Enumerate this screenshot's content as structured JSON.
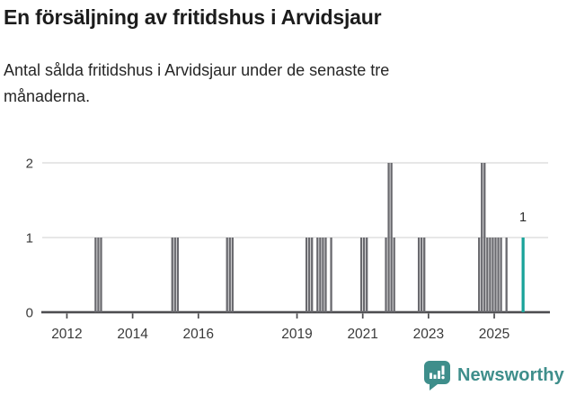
{
  "header": {
    "title": "En försäljning av fritidshus i Arvidsjaur",
    "subtitle_lines": {
      "0": "Antal sålda fritidshus i Arvidsjaur under de senaste tre",
      "1": "månaderna."
    }
  },
  "footer": {
    "brand": "Newsworthy"
  },
  "colors": {
    "bar": "#69696e",
    "highlight": "#19a39a",
    "grid": "#e3e3e3",
    "axis": "#4d4d50",
    "tick_text": "#3a3a3a",
    "annotation_text": "#2a2a2a",
    "brand": "#3e8e8b"
  },
  "chart_data": {
    "type": "bar",
    "title": "En försäljning av fritidshus i Arvidsjaur",
    "subtitle": "Antal sålda fritidshus i Arvidsjaur under de senaste tre månaderna.",
    "xlabel": "",
    "ylabel": "",
    "grid": "horizontal",
    "legend": "none",
    "ylim": [
      0,
      2
    ],
    "y_ticks": [
      0,
      1,
      2
    ],
    "x_tick_labels": [
      "2012",
      "2014",
      "2016",
      "2019",
      "2021",
      "2023",
      "2025"
    ],
    "x_range": [
      "2011-04",
      "2026-08"
    ],
    "points": [
      {
        "month": "2012-11",
        "value": 1
      },
      {
        "month": "2012-12",
        "value": 1
      },
      {
        "month": "2013-01",
        "value": 1
      },
      {
        "month": "2015-03",
        "value": 1
      },
      {
        "month": "2015-04",
        "value": 1
      },
      {
        "month": "2015-05",
        "value": 1
      },
      {
        "month": "2016-11",
        "value": 1
      },
      {
        "month": "2016-12",
        "value": 1
      },
      {
        "month": "2017-01",
        "value": 1
      },
      {
        "month": "2019-04",
        "value": 1
      },
      {
        "month": "2019-05",
        "value": 1
      },
      {
        "month": "2019-06",
        "value": 1
      },
      {
        "month": "2019-08",
        "value": 1
      },
      {
        "month": "2019-09",
        "value": 1
      },
      {
        "month": "2019-10",
        "value": 1
      },
      {
        "month": "2019-11",
        "value": 1
      },
      {
        "month": "2020-01",
        "value": 1
      },
      {
        "month": "2020-12",
        "value": 1
      },
      {
        "month": "2021-01",
        "value": 1
      },
      {
        "month": "2021-02",
        "value": 1
      },
      {
        "month": "2021-09",
        "value": 1
      },
      {
        "month": "2021-10",
        "value": 2
      },
      {
        "month": "2021-11",
        "value": 2
      },
      {
        "month": "2021-12",
        "value": 1
      },
      {
        "month": "2022-09",
        "value": 1
      },
      {
        "month": "2022-10",
        "value": 1
      },
      {
        "month": "2022-11",
        "value": 1
      },
      {
        "month": "2024-07",
        "value": 1
      },
      {
        "month": "2024-08",
        "value": 2
      },
      {
        "month": "2024-09",
        "value": 2
      },
      {
        "month": "2024-10",
        "value": 1
      },
      {
        "month": "2024-11",
        "value": 1
      },
      {
        "month": "2024-12",
        "value": 1
      },
      {
        "month": "2025-01",
        "value": 1
      },
      {
        "month": "2025-02",
        "value": 1
      },
      {
        "month": "2025-03",
        "value": 1
      },
      {
        "month": "2025-05",
        "value": 1
      },
      {
        "month": "2025-11",
        "value": 1,
        "highlight": true
      }
    ],
    "annotation": {
      "label": "1",
      "month": "2025-11"
    }
  }
}
